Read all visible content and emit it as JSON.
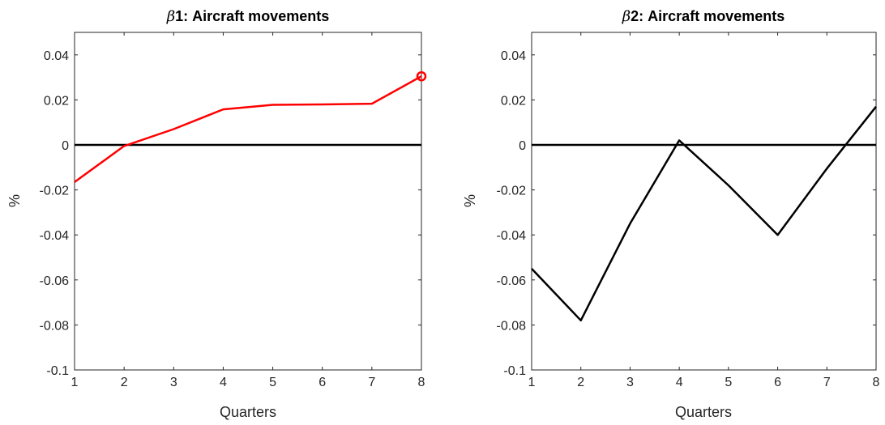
{
  "chart_data": [
    {
      "type": "line",
      "title_symbol": "β",
      "title": "1: Aircraft movements",
      "xlabel": "Quarters",
      "ylabel": "%",
      "xlim": [
        1,
        8
      ],
      "ylim": [
        -0.1,
        0.05
      ],
      "x_ticks": [
        "1",
        "2",
        "3",
        "4",
        "5",
        "6",
        "7",
        "8"
      ],
      "y_ticks": [
        "0.04",
        "0.02",
        "0",
        "-0.02",
        "-0.04",
        "-0.06",
        "-0.08",
        "-0.1"
      ],
      "x": [
        1,
        2,
        3,
        4,
        5,
        6,
        7,
        8
      ],
      "series": [
        {
          "values": [
            -0.0165,
            -0.0005,
            0.007,
            0.0158,
            0.0178,
            0.018,
            0.0183,
            0.0305
          ],
          "color": "#ff0000"
        }
      ],
      "marker": {
        "x": 8,
        "y": 0.0305,
        "shape": "circle",
        "color": "#ff0000"
      },
      "zero_line": true,
      "grid": false
    },
    {
      "type": "line",
      "title_symbol": "β",
      "title": "2: Aircraft movements",
      "xlabel": "Quarters",
      "ylabel": "%",
      "xlim": [
        1,
        8
      ],
      "ylim": [
        -0.1,
        0.05
      ],
      "x_ticks": [
        "1",
        "2",
        "3",
        "4",
        "5",
        "6",
        "7",
        "8"
      ],
      "y_ticks": [
        "0.04",
        "0.02",
        "0",
        "-0.02",
        "-0.04",
        "-0.06",
        "-0.08",
        "-0.1"
      ],
      "x": [
        1,
        2,
        3,
        4,
        5,
        6,
        7,
        8
      ],
      "series": [
        {
          "values": [
            -0.055,
            -0.078,
            -0.035,
            0.002,
            -0.018,
            -0.04,
            -0.0105,
            0.017
          ],
          "color": "#000000"
        }
      ],
      "zero_line": true,
      "grid": false
    }
  ]
}
